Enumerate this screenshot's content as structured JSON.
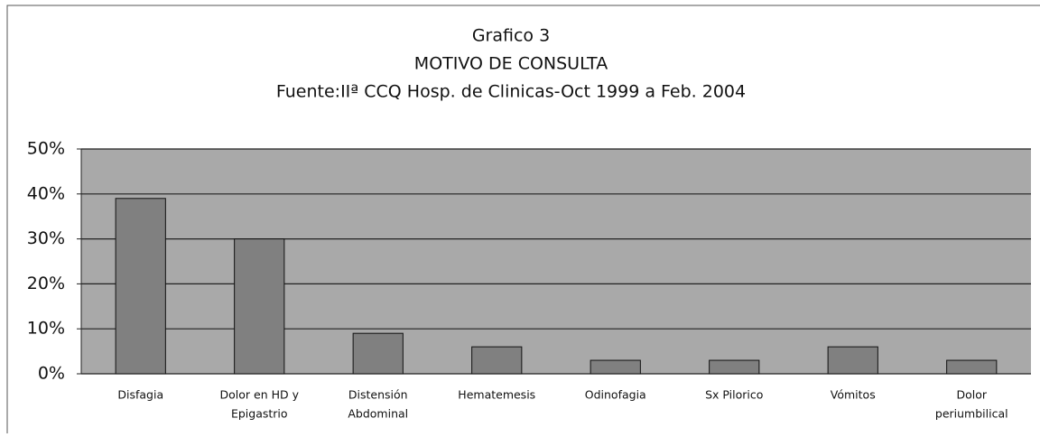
{
  "chart_data": {
    "type": "bar",
    "title_lines": [
      "Grafico 3",
      "MOTIVO DE CONSULTA",
      "Fuente:IIª CCQ Hosp. de Clinicas-Oct 1999 a Feb. 2004"
    ],
    "categories": [
      [
        "Disfagia"
      ],
      [
        "Dolor en HD y",
        "Epigastrio"
      ],
      [
        "Distensión",
        "Abdominal"
      ],
      [
        "Hematemesis"
      ],
      [
        "Odinofagia"
      ],
      [
        "Sx Pilorico"
      ],
      [
        "Vómitos"
      ],
      [
        "Dolor",
        "periumbilical"
      ]
    ],
    "values": [
      39,
      30,
      9,
      6,
      3,
      3,
      6,
      3
    ],
    "color": "#808080",
    "ylim": [
      0,
      50
    ],
    "yticks": [
      {
        "value": 0,
        "label": "0%"
      },
      {
        "value": 10,
        "label": "10%"
      },
      {
        "value": 20,
        "label": "20%"
      },
      {
        "value": 30,
        "label": "30%"
      },
      {
        "value": 40,
        "label": "40%"
      },
      {
        "value": 50,
        "label": "50%"
      }
    ],
    "grid": true
  }
}
